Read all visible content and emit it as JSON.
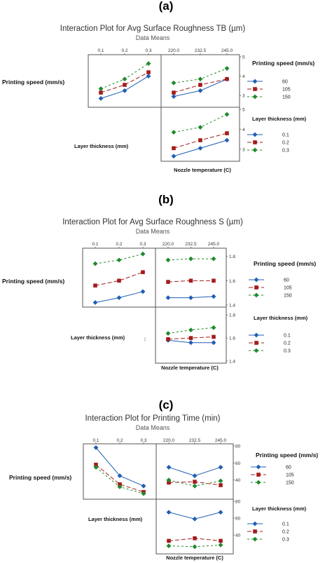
{
  "colors": {
    "s60": "#1f5fb4",
    "s105": "#a41c1c",
    "s150": "#1f8b2d",
    "frame": "#555555"
  },
  "chart_data": [
    {
      "type": "line",
      "panel_label": "(a)",
      "title": "Interaction Plot for Avg Surface Roughness TB (µm)",
      "subtitle": "Data Means",
      "row_labels": [
        "Printing speed (mm/s)",
        "Layer thickness (mm)"
      ],
      "xlabel": "Nozzle temperature (C)",
      "ylim": [
        2.5,
        5
      ],
      "yticks": [
        3,
        4,
        5
      ],
      "legends": [
        {
          "title": "Printing speed (mm/s)",
          "entries": [
            "60",
            "105",
            "150"
          ]
        },
        {
          "title": "Layer thickness (mm)",
          "entries": [
            "0.1",
            "0.2",
            "0.3"
          ]
        }
      ],
      "plots": [
        {
          "x_ticks": [
            "0.1",
            "0.2",
            "0.3"
          ],
          "series": [
            {
              "name": "60",
              "values": [
                2.85,
                3.25,
                4.0
              ]
            },
            {
              "name": "105",
              "values": [
                3.15,
                3.55,
                4.2
              ]
            },
            {
              "name": "150",
              "values": [
                3.35,
                3.85,
                4.65
              ]
            }
          ]
        },
        {
          "x_ticks": [
            "220.0",
            "232.5",
            "245.0"
          ],
          "series": [
            {
              "name": "60",
              "values": [
                2.95,
                3.25,
                3.85
              ]
            },
            {
              "name": "105",
              "values": [
                3.15,
                3.55,
                3.85
              ]
            },
            {
              "name": "150",
              "values": [
                3.65,
                3.85,
                4.4
              ]
            }
          ]
        },
        {
          "x_ticks": [
            "220.0",
            "232.5",
            "245.0"
          ],
          "series": [
            {
              "name": "0.1",
              "values": [
                2.65,
                3.05,
                3.45
              ]
            },
            {
              "name": "0.2",
              "values": [
                3.05,
                3.45,
                3.8
              ]
            },
            {
              "name": "0.3",
              "values": [
                3.85,
                4.1,
                4.75
              ]
            }
          ]
        }
      ]
    },
    {
      "type": "line",
      "panel_label": "(b)",
      "title": "Interaction Plot for Avg Surface Roughness S (µm)",
      "subtitle": "Data Means",
      "row_labels": [
        "Printing speed (mm/s)",
        "Layer thickness (mm)"
      ],
      "xlabel": "Nozzle temperature (C)",
      "ylim": [
        1.4,
        1.85
      ],
      "yticks": [
        1.4,
        1.6,
        1.8
      ],
      "legends": [
        {
          "title": "Printing speed (mm/s)",
          "entries": [
            "60",
            "105",
            "150"
          ]
        },
        {
          "title": "Layer thickness (mm)",
          "entries": [
            "0.1",
            "0.2",
            "0.3"
          ]
        }
      ],
      "plots": [
        {
          "x_ticks": [
            "0.1",
            "0.2",
            "0.3"
          ],
          "series": [
            {
              "name": "60",
              "values": [
                1.42,
                1.46,
                1.51
              ]
            },
            {
              "name": "105",
              "values": [
                1.56,
                1.6,
                1.67
              ]
            },
            {
              "name": "150",
              "values": [
                1.74,
                1.77,
                1.82
              ]
            }
          ]
        },
        {
          "x_ticks": [
            "220.0",
            "232.5",
            "245.0"
          ],
          "series": [
            {
              "name": "60",
              "values": [
                1.46,
                1.46,
                1.47
              ]
            },
            {
              "name": "105",
              "values": [
                1.59,
                1.6,
                1.6
              ]
            },
            {
              "name": "150",
              "values": [
                1.77,
                1.78,
                1.78
              ]
            }
          ]
        },
        {
          "x_ticks": [
            "220.0",
            "232.5",
            "245.0"
          ],
          "series": [
            {
              "name": "0.1",
              "values": [
                1.58,
                1.56,
                1.56
              ]
            },
            {
              "name": "0.2",
              "values": [
                1.59,
                1.6,
                1.61
              ]
            },
            {
              "name": "0.3",
              "values": [
                1.64,
                1.67,
                1.69
              ]
            }
          ]
        }
      ]
    },
    {
      "type": "line",
      "panel_label": "(c)",
      "title": "Interaction Plot for Printing Time (min)",
      "subtitle": "Data Means",
      "row_labels": [
        "Printing speed (mm/s)",
        "Layer thickness (mm)"
      ],
      "xlabel": "Nozzle temperature (C)",
      "ylim": [
        20,
        80
      ],
      "yticks": [
        40,
        60,
        80
      ],
      "legends": [
        {
          "title": "Printing speed (mm/s)",
          "entries": [
            "60",
            "105",
            "150"
          ]
        },
        {
          "title": "Layer thickness (mm)",
          "entries": [
            "0.1",
            "0.2",
            "0.3"
          ]
        }
      ],
      "plots": [
        {
          "x_ticks": [
            "0.1",
            "0.2",
            "0.3"
          ],
          "series": [
            {
              "name": "60",
              "values": [
                78,
                45,
                33
              ]
            },
            {
              "name": "105",
              "values": [
                58,
                35,
                26
              ]
            },
            {
              "name": "150",
              "values": [
                55,
                32,
                24
              ]
            }
          ]
        },
        {
          "x_ticks": [
            "220.0",
            "232.5",
            "245.0"
          ],
          "series": [
            {
              "name": "60",
              "values": [
                55,
                45,
                55
              ]
            },
            {
              "name": "105",
              "values": [
                37,
                38,
                34
              ]
            },
            {
              "name": "150",
              "values": [
                40,
                33,
                39
              ]
            }
          ]
        },
        {
          "x_ticks": [
            "220.0",
            "232.5",
            "245.0"
          ],
          "series": [
            {
              "name": "0.1",
              "values": [
                67,
                59,
                67
              ]
            },
            {
              "name": "0.2",
              "values": [
                33,
                36,
                33
              ]
            },
            {
              "name": "0.3",
              "values": [
                27,
                26,
                28
              ]
            }
          ]
        }
      ]
    }
  ]
}
